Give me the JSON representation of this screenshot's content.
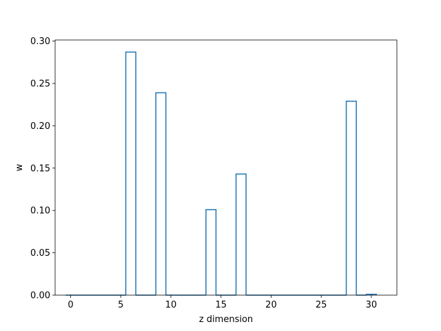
{
  "chart_data": {
    "type": "bar",
    "style": "step-histogram",
    "xlabel": "z dimension",
    "ylabel": "w",
    "xlim": [
      -1.55,
      32.55
    ],
    "ylim": [
      0,
      0.3013
    ],
    "xticks": [
      0,
      5,
      10,
      15,
      20,
      25,
      30
    ],
    "xtick_labels": [
      "0",
      "5",
      "10",
      "15",
      "20",
      "25",
      "30"
    ],
    "yticks": [
      0.0,
      0.05,
      0.1,
      0.15,
      0.2,
      0.25,
      0.3
    ],
    "ytick_labels": [
      "0.00",
      "0.05",
      "0.10",
      "0.15",
      "0.20",
      "0.25",
      "0.30"
    ],
    "grid": false,
    "line_color": "#1f77b4",
    "x": [
      0,
      1,
      2,
      3,
      4,
      5,
      6,
      7,
      8,
      9,
      10,
      11,
      12,
      13,
      14,
      15,
      16,
      17,
      18,
      19,
      20,
      21,
      22,
      23,
      24,
      25,
      26,
      27,
      28,
      29,
      30
    ],
    "values": [
      0,
      0,
      0,
      0,
      0,
      0,
      0.287,
      0,
      0,
      0.239,
      0,
      0,
      0,
      0,
      0.101,
      0,
      0,
      0.143,
      0,
      0,
      0,
      0,
      0,
      0,
      0,
      0,
      0,
      0,
      0.229,
      0,
      0.001
    ]
  }
}
